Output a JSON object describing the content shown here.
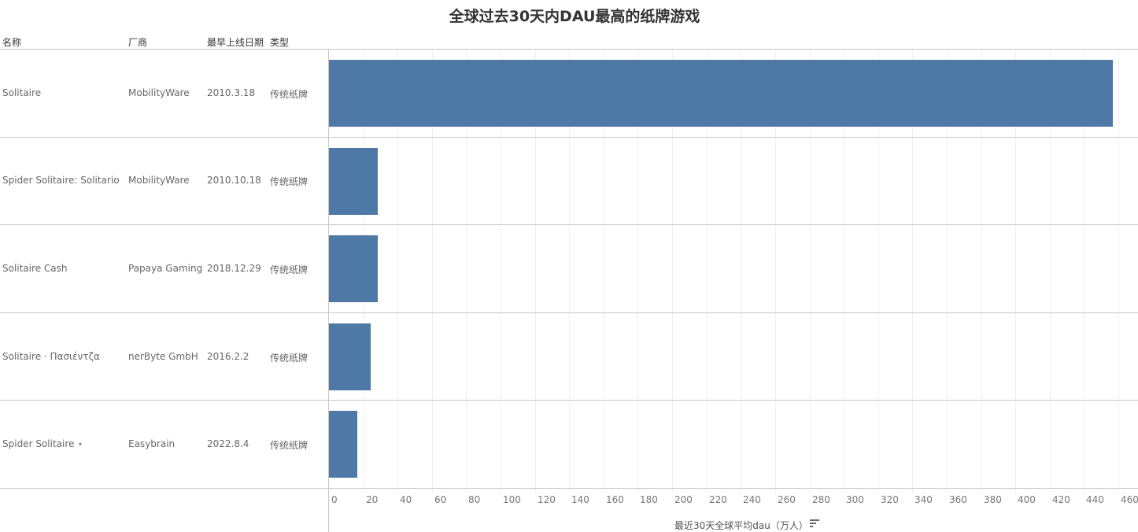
{
  "title": "全球过去30天内DAU最高的纸牌游戏",
  "headers": {
    "name": "名称",
    "vendor": "厂商",
    "date": "最早上线日期",
    "type": "类型"
  },
  "rows": [
    {
      "name": "Solitaire",
      "vendor": "MobilityWare",
      "date": "2010.3.18",
      "type": "传统纸牌",
      "value": 457
    },
    {
      "name": "Spider Solitaire: Solitario",
      "vendor": "MobilityWare",
      "date": "2010.10.18",
      "type": "传统纸牌",
      "value": 28.5
    },
    {
      "name": "Solitaire Cash",
      "vendor": "Papaya Gaming",
      "date": "2018.12.29",
      "type": "传统纸牌",
      "value": 28.5
    },
    {
      "name": "Solitaire · Πασιέντζα",
      "vendor": "nerByte GmbH",
      "date": "2016.2.2",
      "type": "传统纸牌",
      "value": 24.5
    },
    {
      "name": "Spider Solitaire ⋆",
      "vendor": "Easybrain",
      "date": "2022.8.4",
      "type": "传统纸牌",
      "value": 16.5
    }
  ],
  "axis": {
    "title": "最近30天全球平均dau（万人）",
    "ticks": [
      "0",
      "20",
      "40",
      "60",
      "80",
      "100",
      "120",
      "140",
      "160",
      "180",
      "200",
      "220",
      "240",
      "260",
      "280",
      "300",
      "320",
      "340",
      "360",
      "380",
      "400",
      "420",
      "440",
      "460"
    ]
  },
  "colors": {
    "bar": "#4e79a7"
  },
  "chart_data": {
    "type": "bar",
    "orientation": "horizontal",
    "title": "全球过去30天内DAU最高的纸牌游戏",
    "categories": [
      "Solitaire",
      "Spider Solitaire: Solitario",
      "Solitaire Cash",
      "Solitaire · Πασιέντζα",
      "Spider Solitaire ⋆"
    ],
    "values": [
      457,
      28.5,
      28.5,
      24.5,
      16.5
    ],
    "xlabel": "最近30天全球平均dau（万人）",
    "ylabel": "名称",
    "xlim": [
      0,
      470
    ],
    "xticks": [
      0,
      20,
      40,
      60,
      80,
      100,
      120,
      140,
      160,
      180,
      200,
      220,
      240,
      260,
      280,
      300,
      320,
      340,
      360,
      380,
      400,
      420,
      440,
      460
    ],
    "grid": true,
    "table_columns": [
      "名称",
      "厂商",
      "最早上线日期",
      "类型"
    ]
  }
}
